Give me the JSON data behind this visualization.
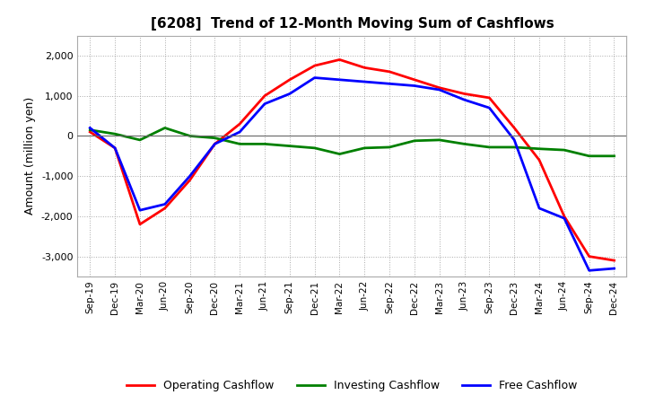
{
  "title": "[6208]  Trend of 12-Month Moving Sum of Cashflows",
  "xlabel": "",
  "ylabel": "Amount (million yen)",
  "ylim": [
    -3500,
    2500
  ],
  "yticks": [
    -3000,
    -2000,
    -1000,
    0,
    1000,
    2000
  ],
  "background_color": "#ffffff",
  "plot_bg_color": "#ffffff",
  "categories": [
    "Sep-19",
    "Dec-19",
    "Mar-20",
    "Jun-20",
    "Sep-20",
    "Dec-20",
    "Mar-21",
    "Jun-21",
    "Sep-21",
    "Dec-21",
    "Mar-22",
    "Jun-22",
    "Sep-22",
    "Dec-22",
    "Mar-23",
    "Jun-23",
    "Sep-23",
    "Dec-23",
    "Mar-24",
    "Jun-24",
    "Sep-24",
    "Dec-24"
  ],
  "operating": [
    100,
    -300,
    -2200,
    -1800,
    -1100,
    -200,
    300,
    1000,
    1400,
    1750,
    1900,
    1700,
    1600,
    1400,
    1200,
    1050,
    950,
    200,
    -600,
    -2000,
    -3000,
    -3100
  ],
  "investing": [
    150,
    50,
    -100,
    200,
    0,
    -50,
    -200,
    -200,
    -250,
    -300,
    -450,
    -300,
    -280,
    -120,
    -100,
    -200,
    -280,
    -280,
    -320,
    -350,
    -500,
    -500
  ],
  "free": [
    200,
    -300,
    -1850,
    -1700,
    -1000,
    -200,
    100,
    800,
    1050,
    1450,
    1400,
    1350,
    1300,
    1250,
    1150,
    900,
    700,
    -100,
    -1800,
    -2050,
    -3350,
    -3300
  ],
  "op_color": "#ff0000",
  "inv_color": "#008000",
  "free_color": "#0000ff",
  "line_width": 2.0,
  "legend_labels": [
    "Operating Cashflow",
    "Investing Cashflow",
    "Free Cashflow"
  ]
}
